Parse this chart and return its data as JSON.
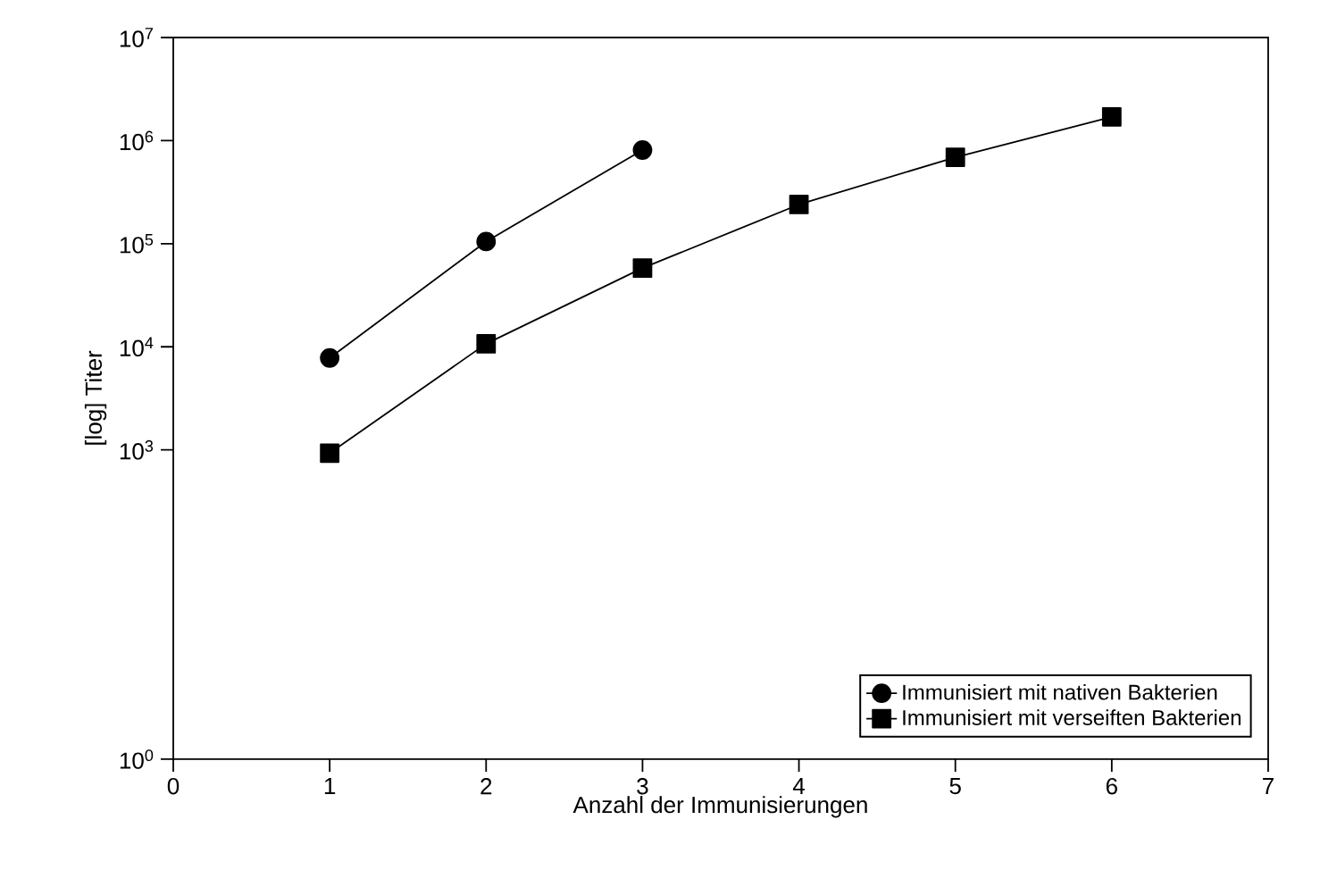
{
  "chart_data": {
    "type": "line",
    "xlabel": "Anzahl der Immunisierungen",
    "ylabel": "[log] Titer",
    "x": [
      1,
      2,
      3,
      4,
      5,
      6
    ],
    "series": [
      {
        "name": "Immunisiert mit nativen Bakterien",
        "color": "#000000",
        "marker": "circle",
        "values": [
          7800,
          105000,
          810000,
          null,
          null,
          null
        ]
      },
      {
        "name": "Immunisiert mit verseiften Bakterien",
        "color": "#000000",
        "marker": "square",
        "values": [
          930,
          10700,
          58000,
          240000,
          690000,
          1700000
        ]
      }
    ],
    "xlim": [
      0,
      7
    ],
    "xticks": [
      0,
      1,
      2,
      3,
      4,
      5,
      6,
      7
    ],
    "ylim": [
      1,
      10000000
    ],
    "log": true,
    "yticks": [
      {
        "value": 1,
        "label": "10$^{0}$"
      },
      {
        "value": 1000,
        "label": "10$^{3}$"
      },
      {
        "value": 10000,
        "label": "10$^{4}$"
      },
      {
        "value": 100000,
        "label": "10$^{5}$"
      },
      {
        "value": 1000000,
        "label": "10$^{6}$"
      },
      {
        "value": 10000000,
        "label": "10$^{7}$"
      }
    ],
    "legend": "bottom right",
    "grid": false
  }
}
